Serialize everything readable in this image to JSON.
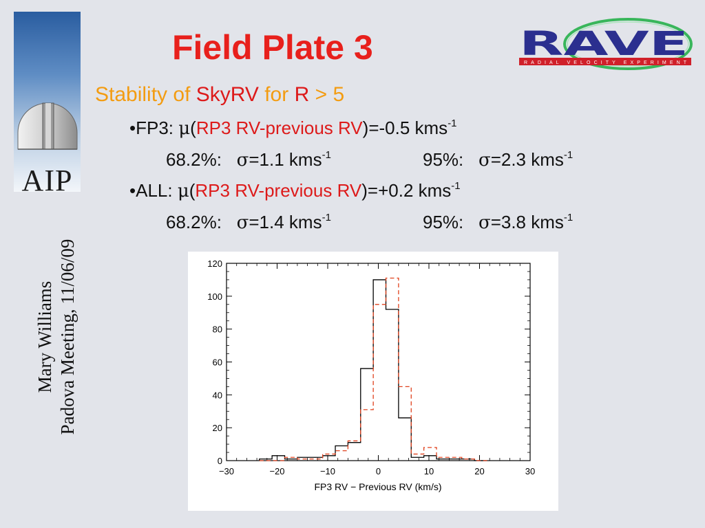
{
  "slide": {
    "title": "Field Plate 3",
    "subtitle": {
      "part1": "Stability of ",
      "part2": "SkyRV",
      "part3": " for ",
      "part4": "R",
      "part5": " > 5"
    },
    "bullets": [
      {
        "bullet": "•",
        "lead": "FP3: ",
        "mu": "μ",
        "open": "(",
        "expr": "RP3 RV-previous RV",
        "rest": ")=-0.5 kms",
        "sup": "-1",
        "stats": {
          "pct1": "68.2%:",
          "sigma1": "σ",
          "val1": "=1.1 kms",
          "sup1": "-1",
          "pct2": "95%:",
          "sigma2": "σ",
          "val2": "=2.3 kms",
          "sup2": "-1"
        }
      },
      {
        "bullet": "•",
        "lead": "ALL: ",
        "mu": "μ",
        "open": "(",
        "expr": "RP3 RV-previous RV",
        "rest": ")=+0.2 kms",
        "sup": "-1",
        "stats": {
          "pct1": "68.2%:",
          "sigma1": "σ",
          "val1": "=1.4 kms",
          "sup1": "-1",
          "pct2": "95%:",
          "sigma2": "σ",
          "val2": "=3.8 kms",
          "sup2": "-1"
        }
      }
    ]
  },
  "side_credit": {
    "line1": "Mary Williams",
    "line2": "Padova Meeting, 11/06/09"
  },
  "aip_logo": {
    "text": "AIP",
    "icon": "observatory-dome-icon"
  },
  "rave_logo": {
    "text": "RAVE",
    "tagline": "RADIAL VELOCITY EXPERIMENT",
    "colors": {
      "letters": "#2b2f8f",
      "band": "#d0202a",
      "swoosh": "#27b04b"
    }
  },
  "chart_data": {
    "type": "histogram",
    "title": "",
    "xlabel": "FP3 RV − Previous RV (km/s)",
    "ylabel": "",
    "xlim": [
      -30,
      30
    ],
    "ylim": [
      0,
      120
    ],
    "xticks": [
      -30,
      -20,
      -10,
      0,
      10,
      20,
      30
    ],
    "xtick_labels": [
      "−30",
      "−20",
      "−10",
      "0",
      "10",
      "20",
      "30"
    ],
    "yticks": [
      0,
      20,
      40,
      60,
      80,
      100,
      120
    ],
    "ytick_labels": [
      "0",
      "20",
      "40",
      "60",
      "80",
      "100",
      "120"
    ],
    "bin_edges": [
      -23.5,
      -21,
      -18.5,
      -16,
      -13.5,
      -11,
      -8.5,
      -6,
      -3.5,
      -1,
      1.5,
      4,
      6.5,
      9,
      11.5,
      14,
      16.5,
      19,
      21.5
    ],
    "series": [
      {
        "style": "solid",
        "color": "#000000",
        "values": [
          1,
          3,
          1,
          2,
          2,
          3,
          9,
          11,
          56,
          110,
          92,
          26,
          2,
          3,
          1,
          1,
          1,
          0
        ]
      },
      {
        "style": "dashed",
        "color": "#e0401c",
        "values": [
          0,
          0,
          2,
          1,
          1,
          4,
          6,
          12,
          31,
          95,
          111,
          45,
          4,
          8,
          2,
          2,
          1,
          0
        ]
      }
    ]
  }
}
